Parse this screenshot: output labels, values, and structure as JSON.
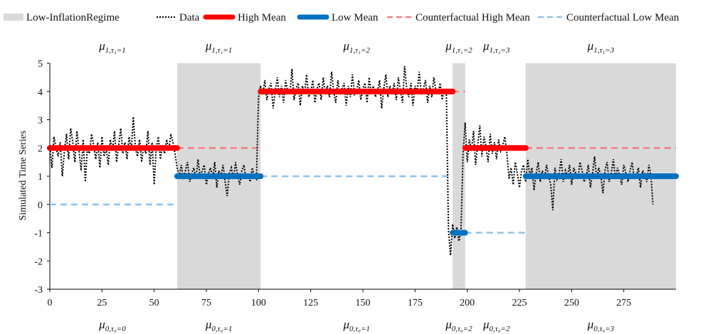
{
  "chart_data": {
    "type": "line",
    "title": "",
    "xlabel": "",
    "ylabel": "Simulated Time Series",
    "xlim": [
      0,
      300
    ],
    "ylim": [
      -3,
      5
    ],
    "xticks": [
      "0",
      "25",
      "50",
      "75",
      "100",
      "125",
      "150",
      "175",
      "200",
      "225",
      "250",
      "275"
    ],
    "yticks": [
      "5",
      "4",
      "3",
      "2",
      "1",
      "0",
      "-1",
      "-2",
      "-3"
    ],
    "legend_position": "top",
    "legend": [
      {
        "key": "regime",
        "label": "Low-InflationRegime",
        "color": "#d9d9d9"
      },
      {
        "key": "data",
        "label": "Data",
        "color": "#000000"
      },
      {
        "key": "high",
        "label": "High Mean",
        "color": "#ff0000"
      },
      {
        "key": "low",
        "label": "Low Mean",
        "color": "#0070c0"
      },
      {
        "key": "cf_high",
        "label": "Counterfactual High Mean",
        "color": "#f08080"
      },
      {
        "key": "cf_low",
        "label": "Counterfactual Low Mean",
        "color": "#8fc2ea"
      }
    ],
    "regimes": [
      [
        61,
        101
      ],
      [
        193,
        199
      ],
      [
        228,
        300
      ]
    ],
    "high_mean": [
      {
        "x0": 0,
        "x1": 61,
        "y": 2
      },
      {
        "x0": 101,
        "x1": 193,
        "y": 4
      },
      {
        "x0": 199,
        "x1": 228,
        "y": 2
      }
    ],
    "low_mean": [
      {
        "x0": 61,
        "x1": 101,
        "y": 1
      },
      {
        "x0": 193,
        "x1": 199,
        "y": -1
      },
      {
        "x0": 228,
        "x1": 300,
        "y": 1
      }
    ],
    "counterfactual_high_mean": [
      {
        "x0": 61,
        "x1": 101,
        "y": 2
      },
      {
        "x0": 193,
        "x1": 199,
        "y": 4
      },
      {
        "x0": 228,
        "x1": 300,
        "y": 2
      }
    ],
    "counterfactual_low_mean": [
      {
        "x0": 0,
        "x1": 61,
        "y": 0
      },
      {
        "x0": 101,
        "x1": 193,
        "y": 1
      },
      {
        "x0": 199,
        "x1": 228,
        "y": -1
      }
    ],
    "data_series": [
      2.1,
      1.3,
      2.4,
      2.0,
      1.7,
      2.2,
      1.0,
      1.9,
      2.5,
      1.6,
      2.7,
      2.2,
      1.5,
      2.6,
      1.9,
      1.2,
      2.3,
      0.8,
      2.0,
      1.8,
      2.5,
      2.1,
      1.6,
      2.2,
      1.3,
      2.4,
      1.7,
      2.0,
      1.4,
      2.3,
      1.9,
      2.6,
      1.5,
      2.1,
      2.7,
      1.8,
      2.2,
      1.6,
      2.4,
      1.9,
      3.1,
      2.0,
      1.7,
      2.3,
      1.5,
      2.1,
      1.8,
      2.6,
      1.4,
      2.2,
      0.7,
      2.0,
      2.4,
      1.6,
      2.1,
      1.8,
      2.3,
      1.9,
      2.5,
      2.2,
      1.8,
      1.3,
      1.0,
      1.4,
      0.9,
      1.2,
      1.5,
      0.8,
      1.1,
      1.3,
      0.9,
      1.6,
      1.0,
      1.2,
      1.4,
      0.7,
      1.1,
      1.3,
      0.9,
      1.5,
      0.6,
      1.2,
      1.0,
      1.4,
      0.8,
      0.3,
      1.1,
      1.3,
      0.9,
      1.5,
      1.0,
      0.7,
      1.2,
      1.4,
      0.9,
      1.1,
      0.8,
      1.3,
      1.0,
      0.9,
      3.8,
      4.2,
      3.9,
      4.4,
      3.7,
      4.1,
      4.3,
      3.4,
      4.0,
      4.5,
      3.8,
      4.2,
      3.6,
      4.4,
      4.0,
      3.9,
      4.8,
      3.7,
      4.1,
      4.3,
      3.5,
      4.2,
      3.9,
      4.6,
      3.8,
      4.0,
      4.4,
      3.6,
      4.1,
      4.3,
      3.7,
      4.5,
      3.9,
      4.2,
      3.8,
      4.7,
      4.0,
      3.6,
      4.4,
      3.9,
      4.1,
      4.3,
      3.5,
      4.2,
      3.8,
      4.6,
      3.9,
      4.0,
      4.4,
      3.7,
      4.1,
      4.3,
      3.6,
      4.5,
      3.9,
      4.2,
      3.8,
      4.0,
      4.4,
      3.4,
      4.1,
      4.6,
      3.8,
      4.2,
      3.9,
      4.3,
      3.7,
      4.5,
      4.0,
      3.6,
      4.9,
      4.1,
      3.8,
      4.3,
      3.5,
      4.2,
      4.0,
      4.7,
      3.9,
      4.1,
      4.4,
      3.6,
      4.2,
      3.8,
      4.5,
      4.0,
      3.9,
      4.3,
      3.7,
      4.1,
      3.9,
      -0.9,
      -1.8,
      -0.7,
      -1.2,
      -0.8,
      -1.3,
      -0.9,
      1.8,
      2.9,
      1.5,
      2.3,
      1.9,
      2.6,
      1.4,
      2.1,
      2.8,
      1.7,
      2.4,
      2.0,
      1.5,
      2.5,
      1.8,
      2.2,
      1.6,
      2.3,
      1.9,
      2.1,
      2.4,
      1.8,
      0.9,
      1.3,
      0.7,
      1.5,
      1.1,
      0.6,
      1.2,
      1.4,
      0.8,
      1.6,
      1.0,
      1.3,
      0.5,
      1.1,
      1.5,
      0.8,
      1.2,
      0.9,
      1.4,
      1.0,
      0.7,
      -0.2,
      1.3,
      0.9,
      1.1,
      1.6,
      0.8,
      1.2,
      1.0,
      1.4,
      0.7,
      1.3,
      1.1,
      0.9,
      1.5,
      1.2,
      0.8,
      1.0,
      1.4,
      0.6,
      1.1,
      1.7,
      0.9,
      1.3,
      1.0,
      0.4,
      1.2,
      1.5,
      0.8,
      1.1,
      1.6,
      0.9,
      1.3,
      1.0,
      0.7,
      1.4,
      1.1,
      0.8,
      1.2,
      1.5,
      0.9,
      1.0,
      1.3,
      0.6,
      1.2,
      1.1,
      0.8,
      1.4,
      1.0,
      0.0
    ],
    "annotations_top": [
      {
        "x": 30,
        "main": "μ",
        "sub": "1,τ₁=1"
      },
      {
        "x": 81,
        "main": "μ",
        "sub": "1,τ₁=1"
      },
      {
        "x": 147,
        "main": "μ",
        "sub": "1,τ₁=2"
      },
      {
        "x": 196,
        "main": "μ",
        "sub": "1,τ₁=2"
      },
      {
        "x": 214,
        "main": "μ",
        "sub": "1,τ₁=3"
      },
      {
        "x": 264,
        "main": "μ",
        "sub": "1,τ₁=3"
      }
    ],
    "annotations_bottom": [
      {
        "x": 30,
        "main": "μ",
        "sub": "0,τ₀=0"
      },
      {
        "x": 81,
        "main": "μ",
        "sub": "0,τ₀=1"
      },
      {
        "x": 147,
        "main": "μ",
        "sub": "0,τ₀=1"
      },
      {
        "x": 196,
        "main": "μ",
        "sub": "0,τ₀=2"
      },
      {
        "x": 214,
        "main": "μ",
        "sub": "0,τ₀=2"
      },
      {
        "x": 264,
        "main": "μ",
        "sub": "0,τ₀=3"
      }
    ]
  }
}
